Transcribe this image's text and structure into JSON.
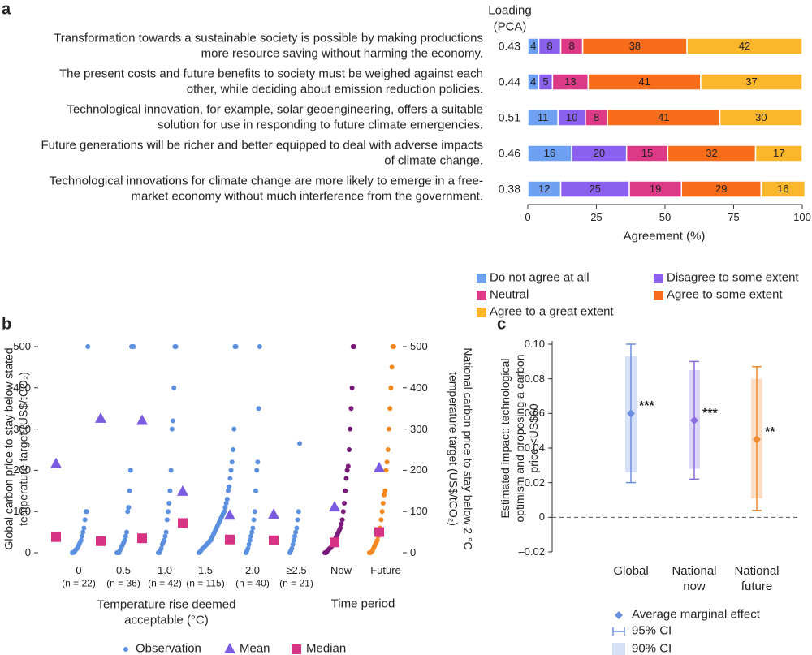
{
  "chart_data": [
    {
      "type": "bar",
      "orientation": "horizontal",
      "stacked": true,
      "panel": "a",
      "loading_label": [
        "Loading",
        "(PCA)"
      ],
      "categories": [
        "Transformation towards a sustainable society is possible by making productions more resource saving without harming the economy.",
        "The present costs and future benefits to society must be weighed against each other, while deciding about emission reduction policies.",
        "Technological innovation, for example, solar geoengineering, offers a suitable solution for use in responding to future climate emergencies.",
        "Future generations will be richer and better equipped to deal with adverse impacts of climate change.",
        "Technological innovations for climate change are more likely to emerge in a free-market economy without much interference from the government."
      ],
      "loadings": [
        0.43,
        0.44,
        0.51,
        0.46,
        0.38
      ],
      "series": [
        {
          "name": "Do not agree at all",
          "color": "#6f9ff0",
          "values": [
            4,
            4,
            11,
            16,
            12
          ]
        },
        {
          "name": "Disagree to some extent",
          "color": "#8b60ee",
          "values": [
            8,
            5,
            10,
            20,
            25
          ]
        },
        {
          "name": "Neutral",
          "color": "#dc3a86",
          "values": [
            8,
            13,
            8,
            15,
            19
          ]
        },
        {
          "name": "Agree to some extent",
          "color": "#f76d1c",
          "values": [
            38,
            41,
            41,
            32,
            29
          ]
        },
        {
          "name": "Agree to a great extent",
          "color": "#fbb72c",
          "values": [
            42,
            37,
            30,
            17,
            16
          ]
        }
      ],
      "xlim": [
        0,
        100
      ],
      "xticks": [
        0,
        25,
        50,
        75,
        100
      ],
      "xlabel": "Agreement (%)",
      "legend": "bottom"
    },
    {
      "type": "scatter",
      "panel": "b",
      "ylabel": "Global carbon price to stay below stated temperature target (US$/tCO₂)",
      "y2label": "National carbon price to stay below 2 °C temperature target (US$/tCO₂)",
      "ylim": [
        0,
        500
      ],
      "yticks": [
        0,
        100,
        200,
        300,
        400,
        500
      ],
      "y2lim": [
        0,
        500
      ],
      "y2ticks": [
        0,
        100,
        200,
        300,
        400,
        500
      ],
      "groups": [
        {
          "xlabel": "Temperature rise deemed acceptable (°C)",
          "categories": [
            "0",
            "0.5",
            "1.0",
            "1.5",
            "2.0",
            "≥2.5"
          ],
          "n_labels": [
            "(n = 22)",
            "(n = 36)",
            "(n = 42)",
            "(n = 115)",
            "(n = 40)",
            "(n = 21)"
          ],
          "observation_colors": [
            "#5b8fe0",
            "#5b8fe0",
            "#5b8fe0",
            "#5b8fe0",
            "#5b8fe0",
            "#5b8fe0"
          ],
          "observations": [
            [
              0,
              0,
              2,
              5,
              8,
              10,
              15,
              20,
              25,
              30,
              40,
              50,
              60,
              80,
              100,
              100,
              500
            ],
            [
              0,
              0,
              0,
              5,
              10,
              15,
              20,
              25,
              30,
              40,
              50,
              100,
              110,
              150,
              200,
              500,
              500,
              500
            ],
            [
              0,
              0,
              5,
              10,
              20,
              25,
              30,
              40,
              50,
              80,
              100,
              120,
              150,
              200,
              300,
              320,
              400,
              500,
              500
            ],
            [
              0,
              2,
              5,
              8,
              10,
              12,
              15,
              18,
              20,
              22,
              25,
              28,
              30,
              35,
              40,
              45,
              50,
              55,
              60,
              65,
              70,
              75,
              80,
              85,
              90,
              95,
              100,
              110,
              120,
              130,
              150,
              160,
              180,
              200,
              220,
              250,
              300,
              500,
              500
            ],
            [
              0,
              5,
              10,
              20,
              30,
              40,
              50,
              60,
              80,
              100,
              150,
              200,
              220,
              350,
              500
            ],
            [
              0,
              5,
              10,
              20,
              30,
              40,
              50,
              60,
              80,
              100,
              265
            ]
          ],
          "means": [
            215,
            325,
            320,
            148,
            90,
            92
          ],
          "medians": [
            38,
            28,
            35,
            72,
            32,
            30
          ]
        },
        {
          "xlabel": "Time period",
          "axis": "y2",
          "categories": [
            "Now",
            "Future"
          ],
          "observation_colors": [
            "#7a1a7a",
            "#f5891f"
          ],
          "observations": [
            [
              0,
              0,
              2,
              5,
              8,
              10,
              12,
              15,
              20,
              25,
              30,
              35,
              40,
              45,
              50,
              55,
              60,
              70,
              80,
              100,
              120,
              150,
              180,
              200,
              210,
              250,
              300,
              350,
              400,
              500,
              500
            ],
            [
              0,
              0,
              2,
              5,
              10,
              15,
              20,
              25,
              30,
              40,
              50,
              60,
              80,
              100,
              120,
              140,
              150,
              200,
              220,
              250,
              300,
              350,
              400,
              450,
              500,
              500
            ]
          ],
          "means": [
            110,
            205
          ],
          "medians": [
            25,
            50
          ]
        }
      ],
      "legend": [
        {
          "name": "Observation",
          "color": "#5b8fe0",
          "marker": "circle"
        },
        {
          "name": "Mean",
          "color": "#7b5ce0",
          "marker": "triangle"
        },
        {
          "name": "Median",
          "color": "#d63384",
          "marker": "square"
        }
      ]
    },
    {
      "type": "errorbar",
      "panel": "c",
      "ylabel": "Estimated impact: technological optimism and proposing a carbon price <US$60",
      "categories": [
        "Global",
        "National now",
        "National future"
      ],
      "values": [
        0.06,
        0.056,
        0.045
      ],
      "ci95": [
        [
          0.02,
          0.1
        ],
        [
          0.022,
          0.09
        ],
        [
          0.004,
          0.087
        ]
      ],
      "ci90": [
        [
          0.026,
          0.093
        ],
        [
          0.028,
          0.085
        ],
        [
          0.011,
          0.08
        ]
      ],
      "significance": [
        "***",
        "***",
        "**"
      ],
      "colors": [
        "#6b8fe0",
        "#8a6ce0",
        "#f08a30"
      ],
      "ylim": [
        -0.02,
        0.1
      ],
      "yticks": [
        {
          "value": -0.02,
          "label": "–0.02"
        },
        0,
        0.02,
        0.04,
        0.06,
        0.08,
        {
          "value": 0.1,
          "label": "0.10"
        }
      ],
      "reference_line": 0,
      "legend": [
        "Average marginal effect",
        "95% CI",
        "90% CI"
      ]
    }
  ]
}
